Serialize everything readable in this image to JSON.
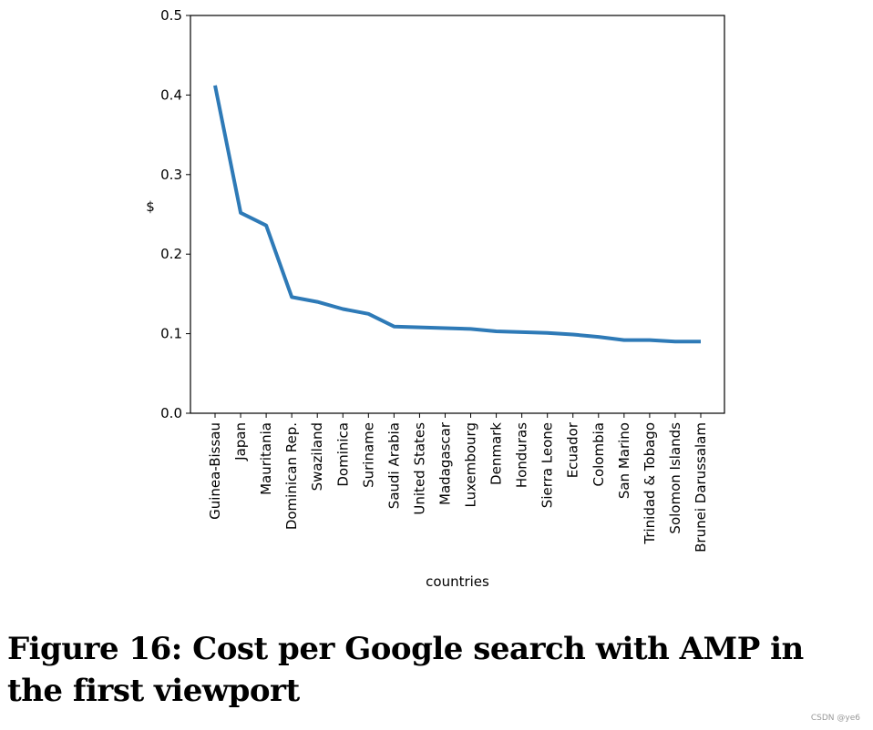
{
  "chart_data": {
    "type": "line",
    "title": "",
    "xlabel": "countries",
    "ylabel": "$",
    "ylim": [
      0,
      0.5
    ],
    "yticks": [
      "0.0",
      "0.1",
      "0.2",
      "0.3",
      "0.4",
      "0.5"
    ],
    "grid": false,
    "line_color": "#2e7ab7",
    "categories": [
      "Guinea-Bissau",
      "Japan",
      "Mauritania",
      "Dominican Rep.",
      "Swaziland",
      "Dominica",
      "Suriname",
      "Saudi Arabia",
      "United States",
      "Madagascar",
      "Luxembourg",
      "Denmark",
      "Honduras",
      "Sierra Leone",
      "Ecuador",
      "Colombia",
      "San Marino",
      "Trinidad & Tobago",
      "Solomon Islands",
      "Brunei Darussalam"
    ],
    "values": [
      0.412,
      0.252,
      0.236,
      0.146,
      0.14,
      0.131,
      0.125,
      0.109,
      0.108,
      0.107,
      0.106,
      0.103,
      0.102,
      0.101,
      0.099,
      0.096,
      0.092,
      0.092,
      0.09,
      0.09
    ]
  },
  "caption": "Figure 16: Cost per Google search with AMP in the first viewport",
  "watermark": "CSDN @ye6"
}
